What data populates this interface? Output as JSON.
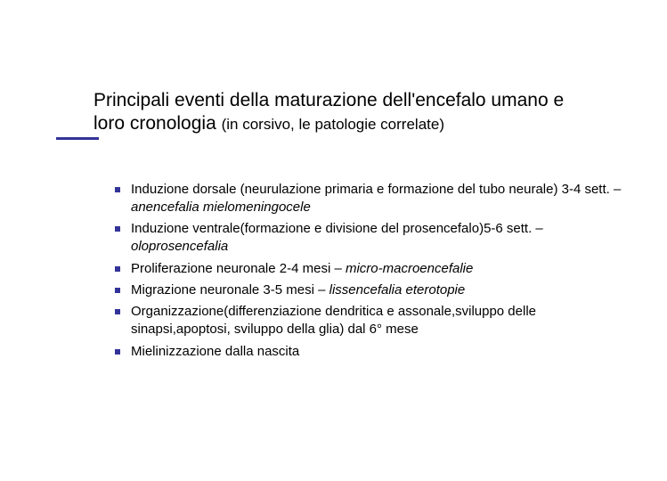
{
  "colors": {
    "accent": "#333399",
    "text": "#000000",
    "background": "#ffffff"
  },
  "title": {
    "main_line1": "Principali eventi della maturazione dell'encefalo umano e",
    "main_line2_prefix": "loro cronologia ",
    "subtitle": "(in corsivo, le patologie correlate)",
    "fontsize_main": 21,
    "fontsize_sub": 17
  },
  "bullets": {
    "fontsize": 15,
    "marker_color": "#333399",
    "items": [
      {
        "segments": [
          {
            "text": "Induzione dorsale (neurulazione primaria e formazione del tubo neurale) 3-4 sett. – ",
            "italic": false
          },
          {
            "text": "anencefalia mielomeningocele",
            "italic": true
          }
        ]
      },
      {
        "segments": [
          {
            "text": "Induzione ventrale(formazione e divisione del prosencefalo)5-6 sett. –",
            "italic": false
          },
          {
            "text": "oloprosencefalia",
            "italic": true
          }
        ]
      },
      {
        "segments": [
          {
            "text": "Proliferazione neuronale  2-4 mesi – ",
            "italic": false
          },
          {
            "text": "micro-macroencefalie",
            "italic": true
          }
        ]
      },
      {
        "segments": [
          {
            "text": "Migrazione neuronale 3-5 mesi – ",
            "italic": false
          },
          {
            "text": "lissencefalia eterotopie",
            "italic": true
          }
        ]
      },
      {
        "segments": [
          {
            "text": "Organizzazione(differenziazione dendritica e assonale,sviluppo delle sinapsi,apoptosi, sviluppo della glia) dal 6° mese",
            "italic": false
          }
        ]
      },
      {
        "segments": [
          {
            "text": "Mielinizzazione dalla nascita",
            "italic": false
          }
        ]
      }
    ]
  }
}
